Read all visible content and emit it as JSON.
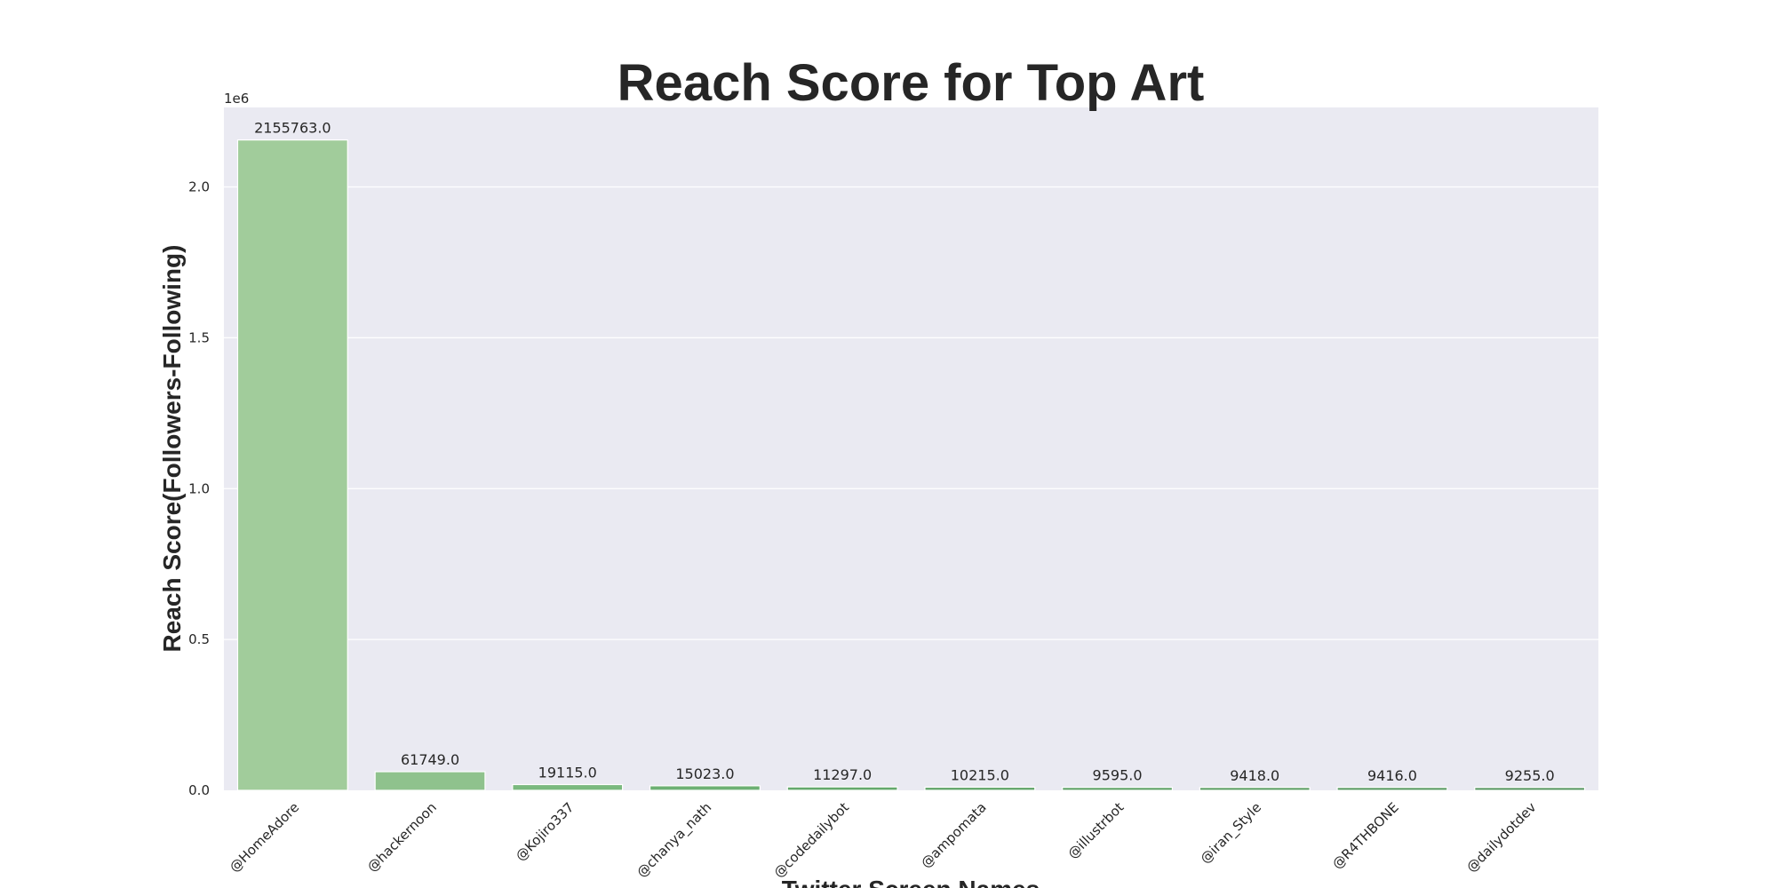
{
  "chart_data": {
    "type": "bar",
    "title": "Reach Score for Top Art",
    "xlabel": "Twitter Screen Names",
    "ylabel": "Reach Score(Followers-Following)",
    "y_offset_label": "1e6",
    "y_scale": 1000000,
    "ylim": [
      0,
      2263551
    ],
    "yticks": [
      0.0,
      0.5,
      1.0,
      1.5,
      2.0
    ],
    "grid": true,
    "categories": [
      "@HomeAdore",
      "@hackernoon",
      "@Kojiro337",
      "@chanya_nath",
      "@codedailybot",
      "@ampomata",
      "@illustrbot",
      "@iran_Style",
      "@R4THBONE",
      "@dailydotdev"
    ],
    "values": [
      2155763,
      61749,
      19115,
      15023,
      11297,
      10215,
      9595,
      9418,
      9416,
      9255
    ],
    "value_labels": [
      "2155763.0",
      "61749.0",
      "19115.0",
      "15023.0",
      "11297.0",
      "10215.0",
      "9595.0",
      "9418.0",
      "9416.0",
      "9255.0"
    ],
    "colors": {
      "plot_background": "#eaeaf2",
      "grid": "#ffffff",
      "bars": [
        "#a1cc9b",
        "#8fc28d",
        "#7ab97e",
        "#6db073",
        "#65a96c",
        "#5ea366",
        "#5a9f62",
        "#579b5f",
        "#54975c",
        "#50925a"
      ]
    }
  }
}
